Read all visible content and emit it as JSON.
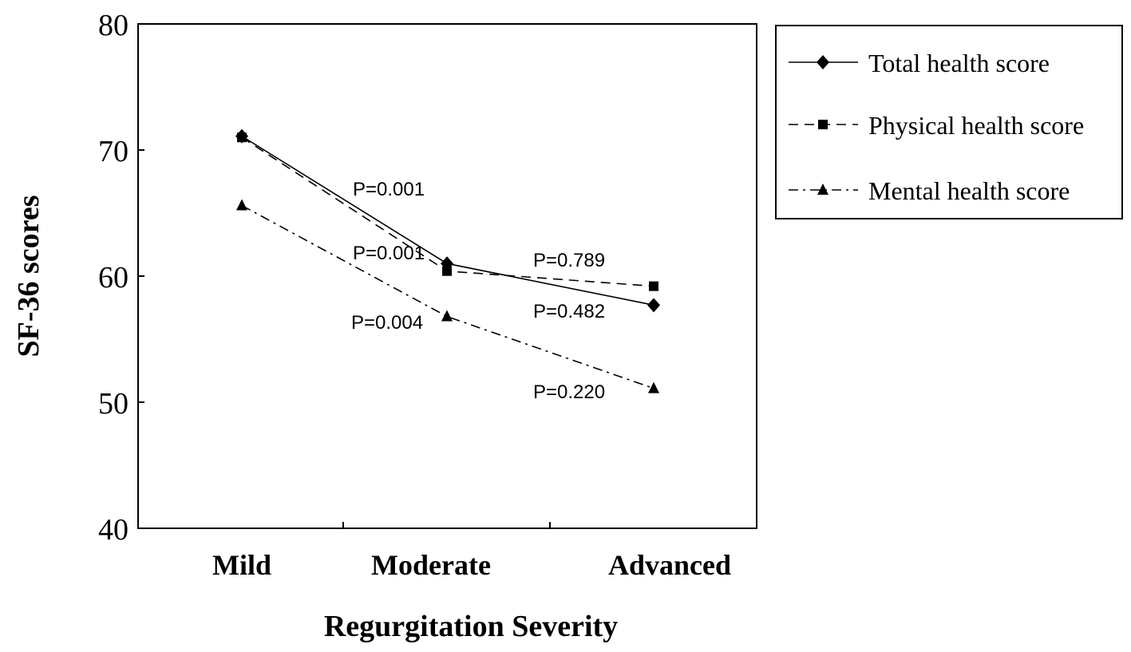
{
  "chart_data": {
    "type": "line",
    "xlabel": "Regurgitation Severity",
    "ylabel": "SF-36 scores",
    "categories": [
      "Mild",
      "Moderate",
      "Advanced"
    ],
    "ylim": [
      40,
      80
    ],
    "yticks": [
      40,
      50,
      60,
      70,
      80
    ],
    "grid": false,
    "legend_position": "right",
    "series": [
      {
        "name": "Total health score",
        "values": [
          71.1,
          61.0,
          57.7
        ],
        "line_style": "solid",
        "marker": "diamond",
        "color": "#000000"
      },
      {
        "name": "Physical health score",
        "values": [
          71.0,
          60.4,
          59.2
        ],
        "line_style": "dashed",
        "marker": "square",
        "color": "#000000"
      },
      {
        "name": "Mental health score",
        "values": [
          65.6,
          56.8,
          51.1
        ],
        "line_style": "dash-dot",
        "marker": "triangle",
        "color": "#000000"
      }
    ],
    "annotations": [
      {
        "text": "P=0.001"
      },
      {
        "text": "P=0.001"
      },
      {
        "text": "P=0.004"
      },
      {
        "text": "P=0.789"
      },
      {
        "text": "P=0.482"
      },
      {
        "text": "P=0.220"
      }
    ]
  }
}
